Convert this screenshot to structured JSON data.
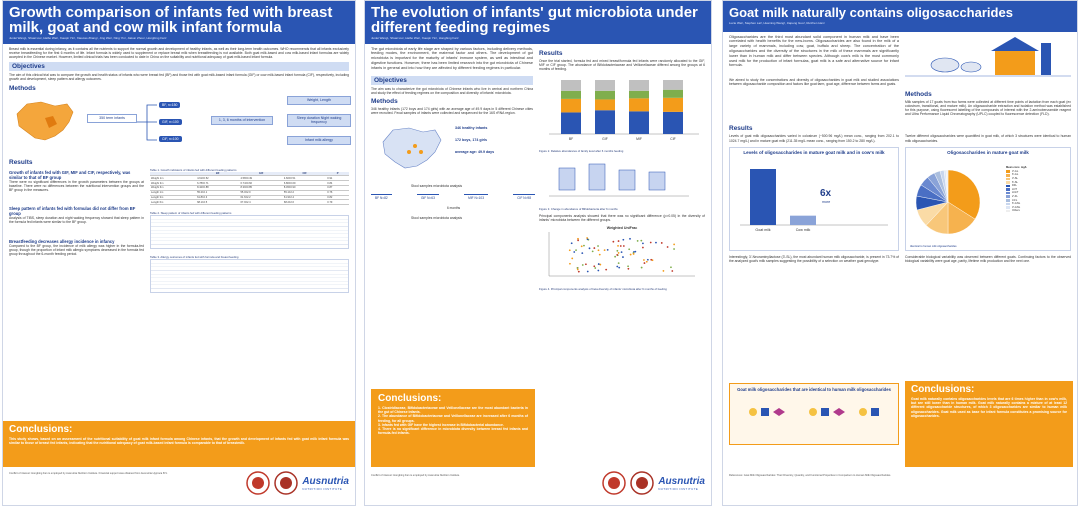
{
  "posters": [
    {
      "title": "Growth comparison of infants fed with breast milk, goat and cow milk infant formula",
      "authors": "Junlei Wang¹, Shuai Liu¹, Haibo Wei¹, Xueqin Yin¹, Xiaocao Zhang¹, Jing Wei¹, Ning Yin¹, Jiakun Zhou¹, Hongbing Fan²",
      "intro": "Breast milk is essential during infancy, as it contains all the nutrients to support the normal growth and development of healthy infants, as well as their long-term health outcomes. WHO recommends that all infants exclusively receive breastfeeding for the first 6 months of life. Infant formula is widely used to supplement or replace breast milk when breastfeeding is not available. Both goat milk-based and cow milk-based infant formulas are widely accepted in the Chinese market. However, limited clinical trials has been conducted to date in China on the suitability and nutritional adequacy of goat milk-based infant formula.",
      "objectives_title": "Objectives",
      "objectives_text": "The aim of this clinical trial was to compare the growth and health status of infants who were breast fed (BF) and those fed with goat milk-based infant formula (GIF) or cow milk-based infant formula (CIF), respectively, including growth and development, sleep pattern and allergy outcomes.",
      "methods_title": "Methods",
      "methods_group": "350 term infants",
      "methods_arms": [
        "BF, n=150",
        "GIF, n=100",
        "CIF, n=100"
      ],
      "methods_ages": "1, 3, 6 months of intervention",
      "methods_outcomes": [
        "Weight, Length",
        "Sleep duration Night waking frequency",
        "Infant milk allergy"
      ],
      "results_title": "Results",
      "r1_title": "Growth of infants fed with GIF, MIF and CIF, respectively, was similar to that of BF group",
      "r1_text": "There were no significant differences in the growth parameters between the groups at baseline. There were no differences between the nutritional intervention groups and the BF group in the measures.",
      "table1_caption": "Table 1. Growth indicators of infants fed with different feeding patterns",
      "table1_head": [
        "",
        "BF",
        "GIF",
        "CIF",
        "P"
      ],
      "table1_rows": [
        [
          "Weight 1m",
          "4.61±0.52",
          "4.58±0.49",
          "4.60±0.51",
          "0.91"
        ],
        [
          "Weight 3m",
          "6.78±0.71",
          "6.74±0.66",
          "6.80±0.69",
          "0.84"
        ],
        [
          "Weight 6m",
          "8.42±0.88",
          "8.39±0.85",
          "8.45±0.90",
          "0.87"
        ],
        [
          "Length 1m",
          "55.2±2.1",
          "55.0±2.0",
          "55.1±2.2",
          "0.76"
        ],
        [
          "Length 3m",
          "61.8±2.3",
          "61.6±2.2",
          "61.9±2.4",
          "0.82"
        ],
        [
          "Length 6m",
          "68.1±2.5",
          "67.9±2.4",
          "68.2±2.6",
          "0.79"
        ]
      ],
      "r2_title": "Sleep pattern of infants fed with formulas did not differ from BF group",
      "r2_text": "Analysis of TIBS, sleep duration and night waking frequency showed that sleep pattern in the formula fed infants were similar to the BF group.",
      "table2_caption": "Table 2. Sleep pattern of infants fed with different feeding patterns",
      "r3_title": "Breastfeeding decreases allergy incidence in infancy",
      "r3_text": "Compared to the BF group, the incidence of milk allergy was higher in the formula-fed group, though the proportion of infant milk allergic symptoms decreased in the formula fed group throughout the 6-month feeding period.",
      "table3_caption": "Table 3. Allergy outcomes of infants fed with formula and breast feeding",
      "conclusions_title": "Conclusions:",
      "conclusions_text": "This study shows, based on an assessment of the nutritional suitability of goat milk infant formula among Chinese infants, that the growth and development of infants fed with goat milk infant formula was similar to those of breast fed infants, indicating that the nutritional adequacy of goat milk-based infant formula is comparable to that of breastmilk.",
      "footer": "Conflict of interest: Hongbing Fan is employed by Ausnutria Nutrition Institute. Financial support was obtained from Ausnutria Hyproca B.V.",
      "logo_main": "Ausnutria",
      "logo_sub": "NUTRITION INSTITUTE"
    },
    {
      "title": "The evolution of infants' gut microbiota under different feeding regimes",
      "authors": "Junlei Wang¹, Shuai Liu¹, Haibo Wei¹, Xueqin Yin¹, Hongbing Fan²",
      "intro": "The gut microbiota of early life stage are shaped by various factors, including delivery methods, feeding modes, the environment, the maternal factor and others. The development of gut microbiota is important for the maturity of infants' immune system, as well as intestinal and digestive functions. However, there has been limited research into the gut microbiota of Chinese infants in general and into how they are affected by different feeding regimes in particular.",
      "objectives_title": "Objectives",
      "objectives_text": "The aim was to characterize the gut microbiota of Chinese infants who live in central and northern China and study the effect of feeding regimes on the composition and diversity of infants' microbiota.",
      "methods_title": "Methods",
      "methods_text": "346 healthy infants (172 boys and 174 girls) with an average age of 49.9 days in 5 different Chinese cities were recruited. Fecal samples of infants were collected and sequenced for the 16S rRNA region.",
      "methods_stats": [
        "346 healthy infants",
        "172 boys, 174 girls",
        "average age: 49.9 days"
      ],
      "methods_flow": "Stool samples microbiota analysis",
      "methods_groups": [
        "BF N=82",
        "GIF N=63",
        "MIF N=103",
        "CIF N=98"
      ],
      "methods_months": "6 months",
      "results_title": "Results",
      "results_text": "Once the trial started, formula fed and mixed breast/formula fed infants were randomly allocated to the GIF, MIF or CIF group. The abundance of Bifidobacteriaceae and Veillonellaceae differed among the groups at 6 months of feeding.",
      "fig1_caption": "Figure 2. Relative abundances of family level after 6 months feeding",
      "fig2_caption": "Figure 3. Change in abundance of Bifidobacteria after 6 months",
      "results_text2": "Principal components analysis showed that there was no significant difference (p>0.05) in the diversity of infants' microbiota between the different groups.",
      "fig3_title": "Weighted UniFrac",
      "fig3_caption": "Figure 4. Principal components analysis of beta diversity of infants' microbiota after 6 months of feeding",
      "conclusions_title": "Conclusions:",
      "conclusions_items": [
        "1. Clostridiaceae, Bifidobacteriaceae and Veillonellaceae are the most abundant bacteria in the gut of Chinese infants.",
        "2. The abundance of Bifidobacteriaceae and Veillonellaceae are increased after 6 months of feeding, for all groups.",
        "3. Infants fed with GIF have the highest increase in Bifidobacterial abundance.",
        "4. There is no significant difference in microbiota diversity between breast fed infants and formula-fed infants."
      ],
      "footer": "Conflict of interest: Hongbing Fan is employed by Ausnutria Nutrition Institute.",
      "logo_main": "Ausnutria",
      "logo_sub": "NUTRITION INSTITUTE"
    },
    {
      "title": "Goat milk naturally contains oligosaccharides",
      "authors": "Lucie Wei¹, Stephen Lai², Huaming Wang², Jiapeng Guo², Ruizhen Han¹",
      "intro": "Oligosaccharides are the third most abundant solid component in human milk and have been correlated with health benefits for the new-borns. Oligosaccharides are also found in the milk of a large variety of mammals, including cow, goat, buffalo and sheep. The concentration of the oligosaccharides and the diversity of the structures in the milk of these mammals are significantly lower than in human milk and differ between species. Although cow's milk is the most commonly used milk for the production of infant formulas, goat milk is a safe and alternative source for infant formula.",
      "methods_title": "Methods",
      "methods_text": "Milk samples of 17 goats from two farms were collected at different time points of lactation from each goat (ex colostrum, transitional, and mature milk). An oligosaccharide extraction and isolation method was established for this purpose, using fluorescent labelling of the compounds of interest with the 2-aminobenzamide reagent and Ultra Performance Liquid Chromatography (UPLC) coupled to fluorescence detection (FLD).",
      "objectives_text": "We aimed to study the concentrations and diversity of oligosaccharides in goat milk and studied associations between oligosaccharide composition and factors like goat farm, goat age, difference between farms and goats.",
      "results_title": "Results",
      "results_text": "Levels of goat milk oligosaccharides varied in colostrum (~500.96 mg/L) mean conc., ranging from 202.1 to 1024.7 mg/L) and in mature goat milk (211.35 mg/L mean conc., ranging from 150.2 to 280 mg/L).",
      "results_text_r": "Twelve different oligosaccharides were quantified in goat milk, of which 3 structures were identical to human milk oligosaccharides.",
      "fig1_title": "Levels of oligosaccharides in mature goat milk and in cow's milk",
      "fig1_ratio": "6x",
      "fig1_ratio_label": "more",
      "fig2_title": "Oligosaccharides in mature goat milk",
      "fig2_legend_title": "Mean conc. mg/L",
      "fig2_legend": [
        "3'-GL",
        "6'-GL",
        "3'-SL",
        "6'-SL",
        "DFL",
        "LNT",
        "LNnT",
        "2'-FL",
        "3-FL",
        "6'-GNL",
        "3'-GNL",
        "Others"
      ],
      "fig2_note": "Identical to human milk oligosaccharides",
      "results_text3": "Interestingly, 3'-Neuraminyllactose (3'-SL), the most abundant human milk oligosaccharide, is present in 73.7% of the analyzed goat's milk samples suggesting the possibility of a selection on weather goat genotype.",
      "results_text3_r": "Considerable biological variability was observed between different goats. Continuing factors to the observed biological variability were goat age, parity, lifetime milk production and the next one.",
      "identical_title": "Goat milk oligosaccharides that are identical to human milk oligosaccharides",
      "conclusions_title": "Conclusions:",
      "conclusions_text": "Goat milk naturally contains oligosaccharides levels that are 6 times higher than in cow's milk, but are still lower than in human milk. Goat milk naturally contains a mixture of at least 12 different oligosaccharide structures, of which 3 oligosaccharides are similar to human milk oligosaccharides. Goat milk used as base for infant formula constitutes a promising source for oligosaccharides.",
      "footer": "References: Goat Milk Oligosaccharides: Their Diversity, Quantity, and Functional Properties in Comparison to Human Milk Oligosaccharides."
    }
  ],
  "chart_data": [
    {
      "type": "bar",
      "title": "Levels of oligosaccharides in mature goat milk and in cow's milk",
      "categories": [
        "Goat milk",
        "Cow milk"
      ],
      "values": [
        6,
        1
      ],
      "ylabel": ""
    },
    {
      "type": "pie",
      "title": "Oligosaccharides in mature goat milk",
      "categories": [
        "3'-GL",
        "6'-GL",
        "3'-SL",
        "6'-SL",
        "DFL",
        "LNT",
        "LNnT",
        "2'-FL",
        "3-FL",
        "6'-GNL",
        "3'-GNL",
        "Others"
      ],
      "values": [
        34,
        16,
        12,
        9,
        7,
        6,
        5,
        4,
        3,
        2,
        1,
        1
      ]
    },
    {
      "type": "bar",
      "title": "",
      "categories": [
        "BF",
        "GIF",
        "MIF",
        "CIF"
      ],
      "series": [
        {
          "values": [
            40,
            44,
            42,
            41
          ]
        },
        {
          "values": [
            25,
            20,
            24,
            26
          ]
        },
        {
          "values": [
            15,
            16,
            14,
            15
          ]
        },
        {
          "values": [
            20,
            20,
            20,
            18
          ]
        }
      ]
    }
  ],
  "colors": {
    "header_blue": "#2a55b3",
    "section_blue": "#cfdcf3",
    "accent_orange": "#f39c1a"
  }
}
